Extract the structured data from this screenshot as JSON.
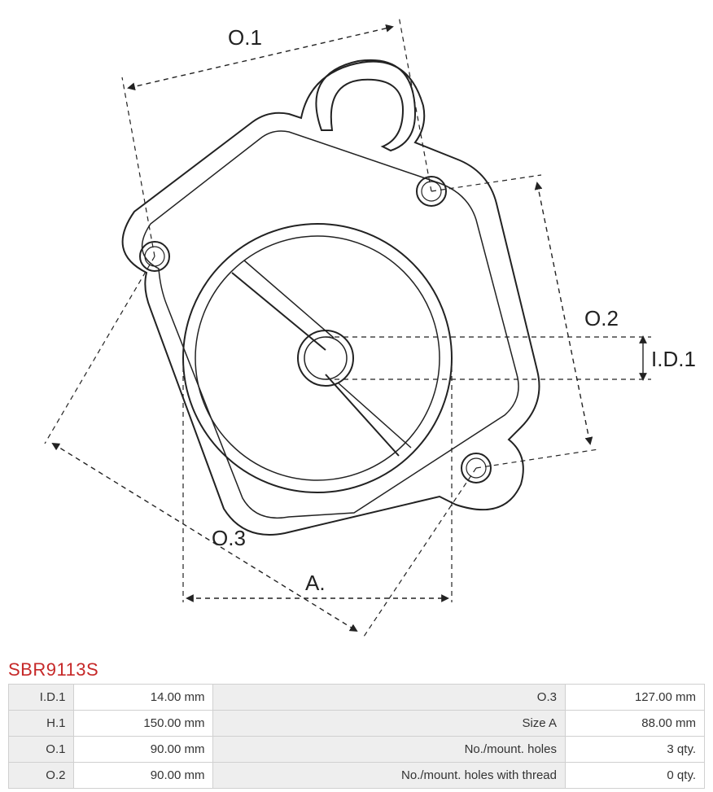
{
  "part": {
    "title": "SBR9113S",
    "title_color": "#c62828"
  },
  "diagram": {
    "stroke_color": "#222222",
    "stroke_width": 2,
    "dash_pattern": "6,5",
    "background": "#ffffff",
    "labels": {
      "o1": "O.1",
      "o2": "O.2",
      "o3": "O.3",
      "id1": "I.D.1",
      "a": "A."
    },
    "label_fontsize": 26,
    "label_color": "#222222"
  },
  "specs": {
    "rows": [
      {
        "k1": "I.D.1",
        "v1": "14.00 mm",
        "k2": "O.3",
        "v2": "127.00 mm"
      },
      {
        "k1": "H.1",
        "v1": "150.00 mm",
        "k2": "Size A",
        "v2": "88.00 mm"
      },
      {
        "k1": "O.1",
        "v1": "90.00 mm",
        "k2": "No./mount. holes",
        "v2": "3 qty."
      },
      {
        "k1": "O.2",
        "v1": "90.00 mm",
        "k2": "No./mount. holes with thread",
        "v2": "0 qty."
      }
    ],
    "header_bg": "#eeeeee",
    "border_color": "#d0d0d0",
    "text_color": "#333333",
    "fontsize": 15
  }
}
